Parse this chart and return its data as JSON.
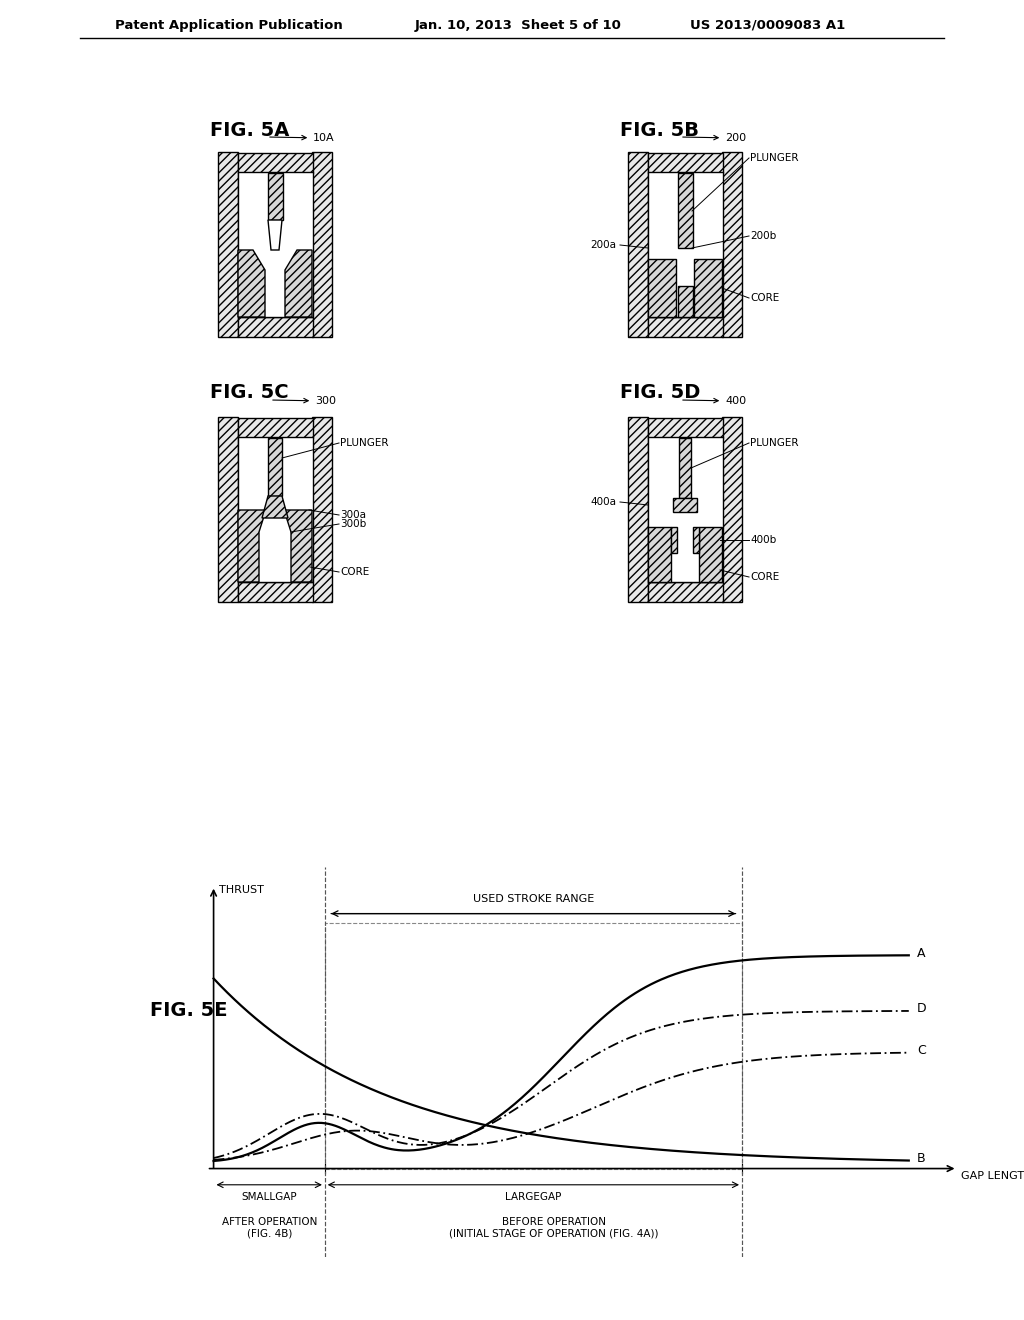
{
  "page_title_left": "Patent Application Publication",
  "page_title_mid": "Jan. 10, 2013  Sheet 5 of 10",
  "page_title_right": "US 2013/0009083 A1",
  "fig5a_label": "FIG. 5A",
  "fig5a_ref": "10A",
  "fig5b_label": "FIG. 5B",
  "fig5b_ref": "200",
  "fig5c_label": "FIG. 5C",
  "fig5c_ref": "300",
  "fig5d_label": "FIG. 5D",
  "fig5d_ref": "400",
  "fig5e_label": "FIG. 5E",
  "background": "#ffffff"
}
